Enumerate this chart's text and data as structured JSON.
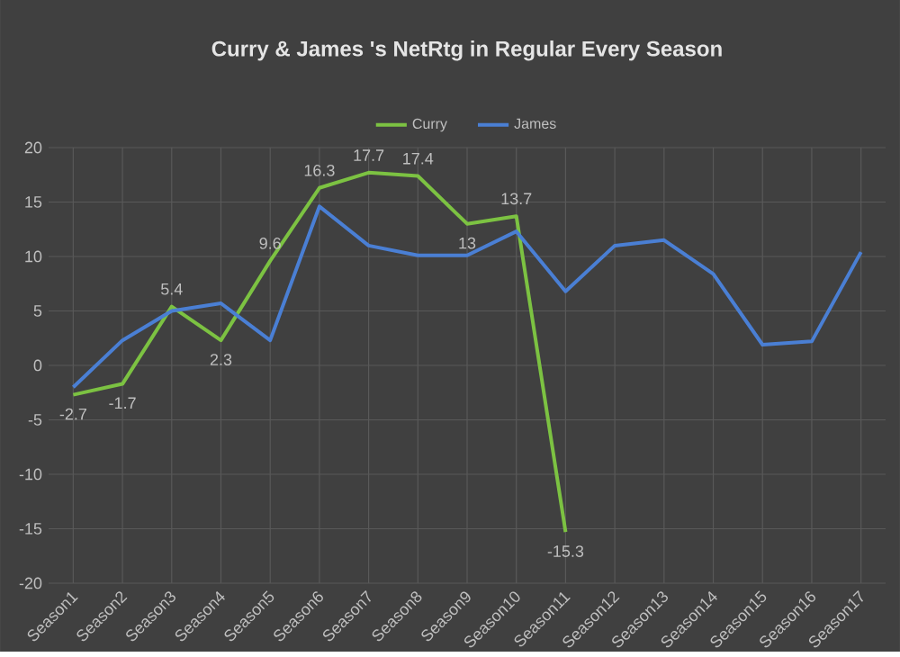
{
  "chart_data": {
    "type": "line",
    "title": "Curry & James 's NetRtg in Regular Every Season",
    "categories": [
      "Season1",
      "Season2",
      "Season3",
      "Season4",
      "Season5",
      "Season6",
      "Season7",
      "Season8",
      "Season9",
      "Season10",
      "Season11",
      "Season12",
      "Season13",
      "Season14",
      "Season15",
      "Season16",
      "Season17"
    ],
    "series": [
      {
        "name": "Curry",
        "color": "#7cc242",
        "values": [
          -2.7,
          -1.7,
          5.4,
          2.3,
          9.6,
          16.3,
          17.7,
          17.4,
          13,
          13.7,
          -15.3,
          null,
          null,
          null,
          null,
          null,
          null
        ],
        "data_labels": true
      },
      {
        "name": "James",
        "color": "#4a7fd4",
        "values": [
          -2.0,
          2.3,
          5.0,
          5.7,
          2.3,
          14.6,
          11.0,
          10.1,
          10.1,
          12.3,
          6.8,
          11.0,
          11.5,
          8.4,
          1.9,
          2.2,
          10.4
        ]
      }
    ],
    "ylim": [
      -20,
      20
    ],
    "yticks": [
      -20,
      -15,
      -10,
      -5,
      0,
      5,
      10,
      15,
      20
    ],
    "grid": true,
    "legend": "top",
    "marker": "none",
    "line_style": "solid"
  }
}
